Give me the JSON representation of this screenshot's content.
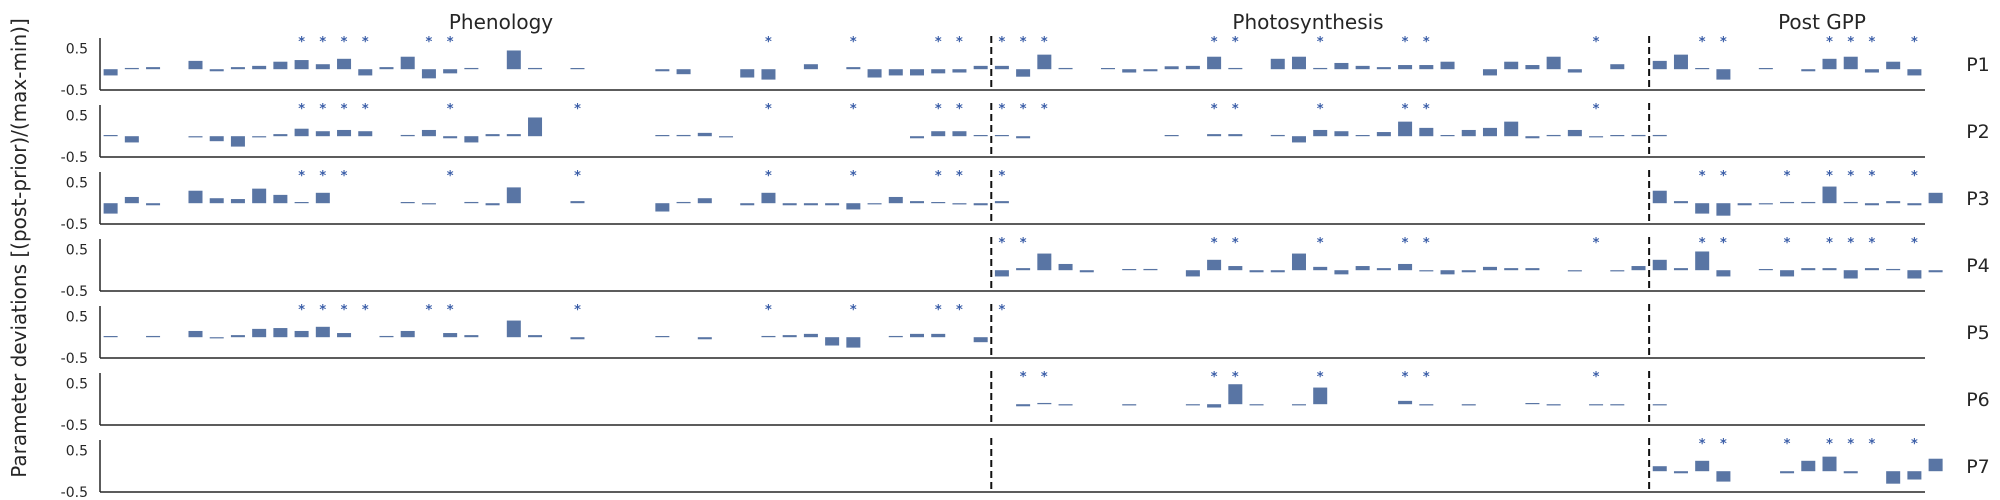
{
  "chart_data": {
    "type": "bar",
    "ylabel": "Parameter deviations [(post-prior)/(max-min)]",
    "ylim": [
      -0.5,
      0.75
    ],
    "yticks": [
      "0.5",
      "-0.5"
    ],
    "bar_color": "#5975a4",
    "star_color": "#3b5ea8",
    "divider_style": "dashed black vertical lines",
    "groups": [
      {
        "label": "Phenology",
        "start": 0,
        "end": 42
      },
      {
        "label": "Photosynthesis",
        "start": 42,
        "end": 73
      },
      {
        "label": "Post GPP",
        "start": 73,
        "end": 86
      }
    ],
    "dividers": [
      42,
      73
    ],
    "significance_marker": "*",
    "series": [
      {
        "name": "P1",
        "values": [
          -0.15,
          0.03,
          0.05,
          null,
          0.2,
          -0.05,
          0.05,
          0.08,
          0.18,
          0.22,
          0.12,
          0.25,
          -0.15,
          0.05,
          0.3,
          -0.22,
          -0.1,
          0.03,
          null,
          0.45,
          0.03,
          null,
          0.02,
          null,
          null,
          null,
          -0.05,
          -0.12,
          null,
          null,
          -0.2,
          -0.25,
          null,
          0.12,
          null,
          0.05,
          -0.2,
          -0.15,
          -0.15,
          -0.1,
          -0.08,
          0.08,
          0.08,
          -0.18,
          0.35,
          0.03,
          null,
          0.02,
          -0.08,
          -0.05,
          0.07,
          0.08,
          0.3,
          0.03,
          null,
          0.25,
          0.3,
          0.03,
          0.15,
          0.08,
          0.05,
          0.1,
          0.1,
          0.18,
          null,
          -0.15,
          0.18,
          0.1,
          0.3,
          -0.08,
          null,
          0.12,
          null,
          0.2,
          0.35,
          0.02,
          -0.25,
          null,
          0.02,
          null,
          -0.05,
          0.25,
          0.3,
          -0.08,
          0.18,
          -0.15
        ],
        "stars": [
          9,
          10,
          11,
          12,
          15,
          16,
          31,
          35,
          39,
          40,
          42,
          43,
          44,
          52,
          53,
          57,
          61,
          62,
          70,
          75,
          76,
          81,
          82,
          83,
          85
        ]
      },
      {
        "name": "P2",
        "values": [
          0.02,
          -0.15,
          null,
          null,
          -0.02,
          -0.12,
          -0.25,
          -0.02,
          0.05,
          0.18,
          0.12,
          0.15,
          0.12,
          null,
          0.03,
          0.15,
          -0.05,
          -0.15,
          0.05,
          0.05,
          0.45,
          null,
          null,
          null,
          null,
          null,
          0.02,
          0.03,
          0.08,
          -0.02,
          null,
          null,
          null,
          null,
          null,
          null,
          null,
          null,
          -0.05,
          0.12,
          0.12,
          0.02,
          0.02,
          -0.05,
          null,
          null,
          null,
          null,
          null,
          null,
          0.02,
          null,
          0.05,
          0.05,
          null,
          0.03,
          -0.15,
          0.15,
          0.12,
          0.02,
          0.1,
          0.35,
          0.2,
          0.02,
          0.15,
          0.2,
          0.35,
          -0.05,
          0.03,
          0.15,
          -0.02,
          0.02,
          0.03,
          0.03
        ],
        "stars": [
          9,
          10,
          11,
          12,
          16,
          22,
          31,
          35,
          39,
          40,
          42,
          43,
          44,
          52,
          53,
          57,
          61,
          62,
          70
        ]
      },
      {
        "name": "P3",
        "values": [
          -0.25,
          0.15,
          -0.05,
          null,
          0.3,
          0.12,
          0.1,
          0.35,
          0.2,
          0.02,
          0.25,
          null,
          null,
          null,
          0.02,
          -0.02,
          null,
          0.03,
          -0.05,
          0.38,
          null,
          null,
          0.05,
          null,
          null,
          null,
          -0.2,
          0.03,
          0.12,
          null,
          -0.05,
          0.25,
          -0.05,
          -0.05,
          -0.05,
          -0.15,
          -0.02,
          0.15,
          0.05,
          0.02,
          -0.03,
          -0.05,
          0.05,
          null,
          null,
          null,
          null,
          null,
          null,
          null,
          null,
          null,
          null,
          null,
          null,
          null,
          null,
          null,
          null,
          null,
          null,
          null,
          null,
          null,
          null,
          null,
          null,
          null,
          null,
          null,
          null,
          null,
          null,
          0.3,
          0.05,
          -0.25,
          -0.3,
          -0.05,
          -0.02,
          0.03,
          0.03,
          0.4,
          0.03,
          -0.05,
          0.05,
          -0.05,
          0.25
        ],
        "stars": [
          9,
          10,
          11,
          16,
          22,
          31,
          35,
          39,
          40,
          42,
          75,
          76,
          79,
          81,
          82,
          83,
          85
        ]
      },
      {
        "name": "P4",
        "values": [
          null,
          null,
          null,
          null,
          null,
          null,
          null,
          null,
          null,
          null,
          null,
          null,
          null,
          null,
          null,
          null,
          null,
          null,
          null,
          null,
          null,
          null,
          null,
          null,
          null,
          null,
          null,
          null,
          null,
          null,
          null,
          null,
          null,
          null,
          null,
          null,
          null,
          null,
          null,
          null,
          null,
          null,
          -0.15,
          0.05,
          0.4,
          0.15,
          -0.05,
          null,
          0.02,
          0.03,
          null,
          -0.15,
          0.25,
          0.1,
          -0.05,
          -0.05,
          0.4,
          0.08,
          -0.1,
          0.1,
          0.05,
          0.15,
          -0.02,
          -0.1,
          -0.05,
          0.08,
          0.05,
          0.05,
          null,
          -0.02,
          null,
          -0.02,
          0.1,
          0.25,
          0.05,
          0.45,
          -0.15,
          null,
          0.02,
          -0.15,
          0.05,
          0.05,
          -0.2,
          0.05,
          0.03,
          -0.2,
          -0.05
        ],
        "stars": [
          42,
          43,
          52,
          53,
          57,
          61,
          62,
          70,
          75,
          76,
          79,
          81,
          82,
          83,
          85
        ]
      },
      {
        "name": "P5",
        "values": [
          0.02,
          null,
          0.03,
          null,
          0.15,
          -0.02,
          0.05,
          0.2,
          0.22,
          0.15,
          0.25,
          0.1,
          null,
          0.03,
          0.15,
          null,
          0.1,
          0.05,
          null,
          0.4,
          0.05,
          null,
          -0.05,
          null,
          null,
          null,
          0.02,
          null,
          -0.05,
          null,
          null,
          0.03,
          0.05,
          0.08,
          -0.2,
          -0.25,
          null,
          0.03,
          0.08,
          0.08,
          null,
          -0.12
        ],
        "stars": [
          9,
          10,
          11,
          12,
          15,
          16,
          22,
          31,
          35,
          39,
          40,
          42
        ]
      },
      {
        "name": "P6",
        "values": [
          null,
          null,
          null,
          null,
          null,
          null,
          null,
          null,
          null,
          null,
          null,
          null,
          null,
          null,
          null,
          null,
          null,
          null,
          null,
          null,
          null,
          null,
          null,
          null,
          null,
          null,
          null,
          null,
          null,
          null,
          null,
          null,
          null,
          null,
          null,
          null,
          null,
          null,
          null,
          null,
          null,
          null,
          null,
          -0.05,
          0.03,
          -0.03,
          null,
          null,
          -0.03,
          null,
          null,
          -0.02,
          -0.08,
          0.48,
          -0.02,
          null,
          -0.02,
          0.4,
          null,
          null,
          null,
          0.08,
          -0.03,
          null,
          -0.03,
          null,
          null,
          0.02,
          -0.03,
          null,
          -0.02,
          -0.02,
          null,
          -0.02
        ],
        "stars": [
          43,
          44,
          52,
          53,
          57,
          61,
          62,
          70
        ]
      },
      {
        "name": "P7",
        "values": [
          null,
          null,
          null,
          null,
          null,
          null,
          null,
          null,
          null,
          null,
          null,
          null,
          null,
          null,
          null,
          null,
          null,
          null,
          null,
          null,
          null,
          null,
          null,
          null,
          null,
          null,
          null,
          null,
          null,
          null,
          null,
          null,
          null,
          null,
          null,
          null,
          null,
          null,
          null,
          null,
          null,
          null,
          null,
          null,
          null,
          null,
          null,
          null,
          null,
          null,
          null,
          null,
          null,
          null,
          null,
          null,
          null,
          null,
          null,
          null,
          null,
          null,
          null,
          null,
          null,
          null,
          null,
          null,
          null,
          null,
          null,
          null,
          null,
          0.12,
          -0.05,
          0.25,
          -0.25,
          null,
          null,
          -0.05,
          0.25,
          0.35,
          -0.05,
          null,
          -0.3,
          -0.2,
          0.3
        ],
        "stars": [
          75,
          76,
          79,
          81,
          82,
          83,
          85
        ]
      }
    ]
  }
}
